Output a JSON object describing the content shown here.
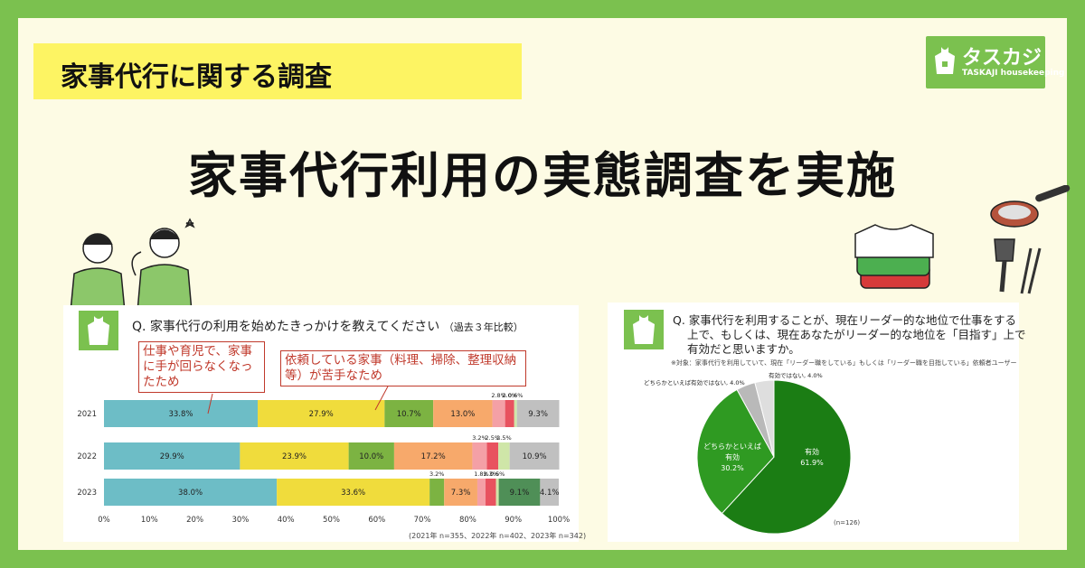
{
  "header": {
    "tag": "家事代行に関する調査",
    "headline": "家事代行利用の実態調査を実施",
    "logo_name": "タスカジ",
    "logo_sub": "TASKAJI housekeeping"
  },
  "colors": {
    "frame": "#7bc14f",
    "background": "#fdfbe4",
    "tag": "#fdf463"
  },
  "left_card": {
    "logo_text": "タスカジ",
    "question": "Q. 家事代行の利用を始めたきっかけを教えてください",
    "question_note": "（過去３年比較）",
    "callout1": "仕事や育児で、家事に手が回らなくなったため",
    "callout2": "依頼している家事（料理、掃除、整理収納等）が苦手なため",
    "footnote": "(2021年 n=355、2022年 n=402、2023年 n=342)"
  },
  "right_card": {
    "logo_text": "タスカジ",
    "question_line1": "Q. 家事代行を利用することが、現在リーダー的な地位で仕事をする",
    "question_line2": "上で、もしくは、現在あなたがリーダー的な地位を「目指す」上で",
    "question_line3": "有効だと思いますか。",
    "target_note": "※対象：家事代行を利用していて、現在「リーダー職をしている」もしくは「リーダー職を目指している」依頼者ユーザー",
    "n_label": "(n=126)"
  },
  "chart_data": [
    {
      "type": "bar",
      "orientation": "horizontal-stacked",
      "categories": [
        "2021",
        "2022",
        "2023"
      ],
      "series": [
        {
          "color": "#6dbdc6",
          "values": [
            33.8,
            29.9,
            38.0
          ],
          "labels": [
            "33.8%",
            "29.9%",
            "38.0%"
          ]
        },
        {
          "color": "#f0dc3c",
          "values": [
            27.9,
            23.9,
            33.6
          ],
          "labels": [
            "27.9%",
            "23.9%",
            "33.6%"
          ]
        },
        {
          "color": "#7cb342",
          "values": [
            10.7,
            10.0,
            3.2
          ],
          "labels": [
            "10.7%",
            "10.0%",
            "3.2%"
          ]
        },
        {
          "color": "#f7a96b",
          "values": [
            13.0,
            17.2,
            7.3
          ],
          "labels": [
            "13.0%",
            "17.2%",
            "7.3%"
          ]
        },
        {
          "color": "#f4a0a6",
          "values": [
            2.8,
            3.2,
            1.8
          ],
          "labels": [
            "2.8%",
            "3.2%",
            "1.8%"
          ]
        },
        {
          "color": "#e8525f",
          "values": [
            2.0,
            2.5,
            2.3
          ],
          "labels": [
            "2.0%",
            "2.5%",
            "2.3%"
          ]
        },
        {
          "color": "#cfe6a8",
          "values": [
            0.6,
            2.5,
            0.6
          ],
          "labels": [
            "0.6%",
            "2.5%",
            "0.6%"
          ]
        },
        {
          "color": "#d9d9d9",
          "values": [
            0,
            0,
            0.0
          ],
          "labels": [
            "",
            "",
            ""
          ]
        },
        {
          "color": "#4f8f57",
          "values": [
            0,
            0,
            9.1
          ],
          "labels": [
            "",
            "",
            "9.1%"
          ]
        },
        {
          "color": "#c0c0c0",
          "values": [
            9.3,
            10.9,
            4.1
          ],
          "labels": [
            "9.3%",
            "10.9%",
            "4.1%"
          ]
        }
      ],
      "xlim": [
        0,
        100
      ],
      "ticks": [
        "0%",
        "10%",
        "20%",
        "30%",
        "40%",
        "50%",
        "60%",
        "70%",
        "80%",
        "90%",
        "100%"
      ]
    },
    {
      "type": "pie",
      "slices": [
        {
          "label": "有効",
          "value": 61.9,
          "value_label": "61.9%",
          "color": "#1b7d14"
        },
        {
          "label": "どちらかといえば有効",
          "label_line1": "どちらかといえば",
          "label_line2": "有効",
          "value": 30.2,
          "value_label": "30.2%",
          "color": "#2f9a22"
        },
        {
          "label": "どちらかといえば有効ではない",
          "value": 4.0,
          "value_label": "4.0%",
          "outside_label": "どちらかといえば有効ではない, 4.0%",
          "color": "#b9b9b9"
        },
        {
          "label": "有効ではない",
          "value": 4.0,
          "value_label": "4.0%",
          "outside_label": "有効ではない, 4.0%",
          "color": "#dedede"
        }
      ]
    }
  ]
}
